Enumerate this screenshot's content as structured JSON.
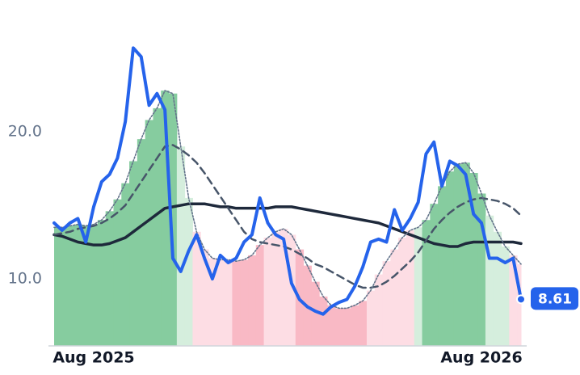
{
  "chart_data": {
    "type": "line",
    "categories": [
      null,
      null,
      null,
      null,
      null,
      "Aug 2025",
      null,
      null,
      null,
      null,
      null,
      null,
      null,
      null,
      null,
      null,
      null,
      null,
      null,
      null,
      null,
      null,
      null,
      null,
      null,
      null,
      null,
      null,
      null,
      null,
      null,
      null,
      null,
      null,
      null,
      null,
      null,
      null,
      null,
      null,
      null,
      null,
      null,
      null,
      null,
      null,
      null,
      null,
      null,
      null,
      null,
      null,
      null,
      null,
      "Aug 2026",
      null,
      null,
      null,
      null,
      null
    ],
    "ylim": [
      5.44,
      28.96
    ],
    "yticks": [
      {
        "value": 10,
        "label": "10.0"
      },
      {
        "value": 20,
        "label": "20.0"
      }
    ],
    "bars": {
      "values": [
        13.5,
        13.5,
        13.6,
        13.7,
        13.6,
        13.7,
        14.0,
        14.6,
        15.4,
        16.5,
        18.0,
        19.5,
        20.8,
        21.6,
        22.8,
        22.6,
        19.0,
        15.5,
        13.2,
        12.0,
        11.4,
        11.3,
        11.3,
        11.2,
        11.3,
        11.6,
        12.3,
        12.8,
        13.2,
        13.4,
        13.0,
        12.0,
        10.9,
        9.8,
        8.8,
        8.2,
        8.0,
        8.0,
        8.2,
        8.5,
        9.2,
        10.3,
        11.2,
        12.0,
        12.8,
        13.3,
        13.5,
        14.0,
        15.1,
        16.3,
        17.3,
        17.8,
        17.9,
        17.2,
        15.8,
        14.3,
        13.2,
        12.2,
        11.6,
        11.0
      ],
      "colors": [
        "#86cc9f",
        "#86cc9f",
        "#86cc9f",
        "#86cc9f",
        "#86cc9f",
        "#86cc9f",
        "#86cc9f",
        "#86cc9f",
        "#86cc9f",
        "#86cc9f",
        "#86cc9f",
        "#86cc9f",
        "#86cc9f",
        "#86cc9f",
        "#86cc9f",
        "#86cc9f",
        "#d5eedd",
        "#d5eedd",
        "#fddde4",
        "#fddde4",
        "#fddde4",
        "#fddde4",
        "#fddde4",
        "#f9b9c5",
        "#f9b9c5",
        "#f9b9c5",
        "#f9b9c5",
        "#fddde4",
        "#fddde4",
        "#fddde4",
        "#fddde4",
        "#f9b9c5",
        "#f9b9c5",
        "#f9b9c5",
        "#f9b9c5",
        "#f9b9c5",
        "#f9b9c5",
        "#f9b9c5",
        "#f9b9c5",
        "#f9b9c5",
        "#fddde4",
        "#fddde4",
        "#fddde4",
        "#fddde4",
        "#fddde4",
        "#fddde4",
        "#d5eedd",
        "#86cc9f",
        "#86cc9f",
        "#86cc9f",
        "#86cc9f",
        "#86cc9f",
        "#86cc9f",
        "#86cc9f",
        "#86cc9f",
        "#d5eedd",
        "#d5eedd",
        "#d5eedd",
        "#fddde4",
        "#fddde4"
      ]
    },
    "series": [
      {
        "color": "#2563eb",
        "style": "solid",
        "width": 4,
        "values": [
          13.8,
          13.3,
          13.8,
          14.1,
          12.5,
          14.9,
          16.6,
          17.1,
          18.2,
          20.7,
          25.7,
          25.1,
          21.8,
          22.6,
          21.5,
          11.4,
          10.5,
          11.9,
          13.0,
          11.4,
          10.0,
          11.6,
          11.1,
          11.4,
          12.5,
          13.0,
          15.5,
          13.8,
          13.0,
          12.7,
          9.7,
          8.6,
          8.1,
          7.8,
          7.6,
          8.1,
          8.4,
          8.6,
          9.5,
          10.8,
          12.5,
          12.7,
          12.5,
          14.7,
          13.3,
          14.1,
          15.2,
          18.5,
          19.3,
          16.3,
          18.0,
          17.7,
          17.1,
          14.4,
          13.8,
          11.4,
          11.4,
          11.1,
          11.4,
          8.61
        ]
      },
      {
        "color": "#64748b",
        "style": "dotted",
        "width": 1.6,
        "values": [
          13.5,
          13.5,
          13.6,
          13.7,
          13.6,
          13.7,
          14.0,
          14.6,
          15.4,
          16.5,
          18.0,
          19.5,
          20.8,
          21.6,
          22.8,
          22.6,
          19.0,
          15.5,
          13.2,
          12.0,
          11.4,
          11.3,
          11.3,
          11.2,
          11.3,
          11.6,
          12.3,
          12.8,
          13.2,
          13.4,
          13.0,
          12.0,
          10.9,
          9.8,
          8.8,
          8.2,
          8.0,
          8.0,
          8.2,
          8.5,
          9.2,
          10.3,
          11.2,
          12.0,
          12.8,
          13.3,
          13.5,
          14.0,
          15.1,
          16.3,
          17.3,
          17.8,
          17.9,
          17.2,
          15.8,
          14.3,
          13.2,
          12.2,
          11.6,
          11.0
        ]
      },
      {
        "color": "#475569",
        "style": "dashed",
        "width": 2.5,
        "values": [
          13.0,
          13.1,
          13.2,
          13.4,
          13.5,
          13.6,
          13.8,
          14.1,
          14.5,
          15.0,
          15.8,
          16.6,
          17.4,
          18.2,
          19.0,
          19.1,
          18.8,
          18.4,
          17.9,
          17.2,
          16.4,
          15.6,
          14.8,
          14.0,
          13.2,
          12.7,
          12.5,
          12.4,
          12.3,
          12.2,
          12.0,
          11.7,
          11.4,
          11.0,
          10.8,
          10.5,
          10.2,
          9.9,
          9.6,
          9.4,
          9.4,
          9.5,
          9.8,
          10.2,
          10.7,
          11.2,
          11.8,
          12.6,
          13.4,
          14.0,
          14.5,
          14.9,
          15.2,
          15.4,
          15.5,
          15.4,
          15.3,
          15.1,
          14.8,
          14.3
        ]
      },
      {
        "color": "#1e293b",
        "style": "solid",
        "width": 3.5,
        "values": [
          13.0,
          12.9,
          12.7,
          12.5,
          12.4,
          12.3,
          12.3,
          12.4,
          12.6,
          12.8,
          13.2,
          13.6,
          14.0,
          14.4,
          14.8,
          14.9,
          15.0,
          15.1,
          15.1,
          15.1,
          15.0,
          14.9,
          14.9,
          14.8,
          14.8,
          14.8,
          14.8,
          14.8,
          14.9,
          14.9,
          14.9,
          14.8,
          14.7,
          14.6,
          14.5,
          14.4,
          14.3,
          14.2,
          14.1,
          14.0,
          13.9,
          13.8,
          13.6,
          13.4,
          13.2,
          13.0,
          12.8,
          12.6,
          12.4,
          12.3,
          12.2,
          12.2,
          12.4,
          12.5,
          12.5,
          12.5,
          12.5,
          12.5,
          12.5,
          12.4
        ]
      }
    ]
  }
}
